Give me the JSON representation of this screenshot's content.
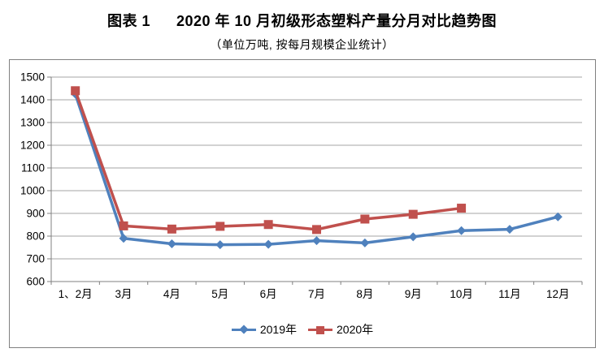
{
  "title": {
    "prefix": "图表 1",
    "text": "2020 年 10 月初级形态塑料产量分月对比趋势图",
    "subtitle": "（单位万吨, 按每月规模企业统计）"
  },
  "chart_data": {
    "type": "line",
    "categories": [
      "1、2月",
      "3月",
      "4月",
      "5月",
      "6月",
      "7月",
      "8月",
      "9月",
      "10月",
      "11月",
      "12月"
    ],
    "series": [
      {
        "name": "2019年",
        "color": "#4F81BD",
        "marker": "diamond",
        "values": [
          1425,
          790,
          766,
          762,
          764,
          780,
          770,
          797,
          824,
          830,
          885
        ]
      },
      {
        "name": "2020年",
        "color": "#C0504D",
        "marker": "square",
        "values": [
          1440,
          845,
          831,
          843,
          851,
          829,
          875,
          896,
          923,
          null,
          null
        ]
      }
    ],
    "ylim": [
      600,
      1500
    ],
    "ytick_step": 100,
    "yticks": [
      600,
      700,
      800,
      900,
      1000,
      1100,
      1200,
      1300,
      1400,
      1500
    ],
    "grid": true,
    "legend_position": "bottom-center",
    "grid_color": "#A6A6A6",
    "axis_color": "#808080",
    "tick_label_color": "#000000"
  }
}
